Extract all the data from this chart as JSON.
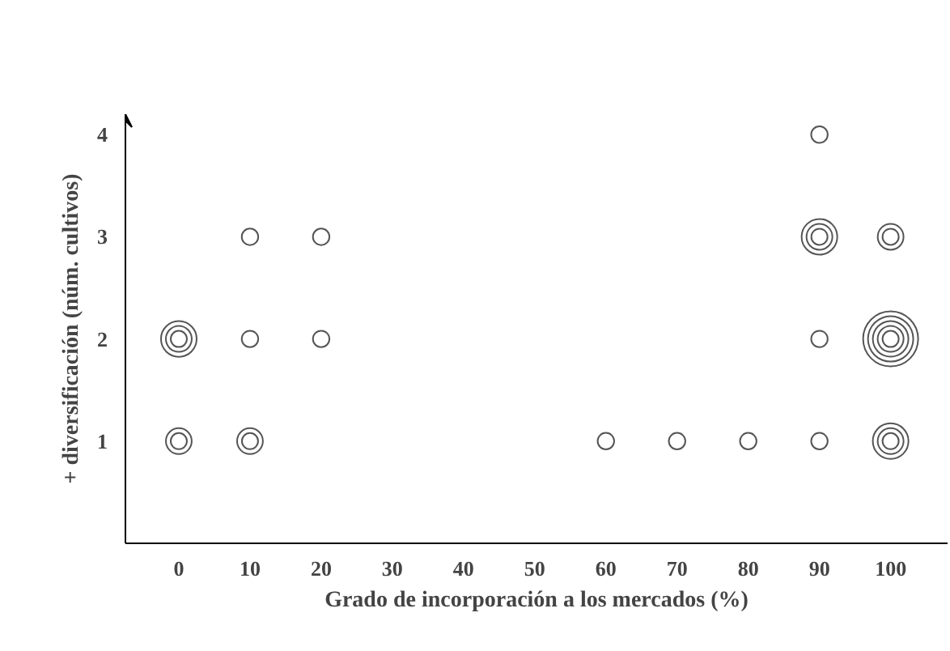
{
  "chart_data": {
    "type": "bubble",
    "xlabel": "Grado de incorporación a los mercados (%)",
    "ylabel": "+ diversificación (núm. cultivos)",
    "x": [
      0,
      10,
      0,
      10,
      20,
      10,
      20,
      60,
      70,
      80,
      90,
      100,
      90,
      100,
      90,
      100,
      90
    ],
    "values": [
      1,
      1,
      2,
      2,
      2,
      3,
      3,
      1,
      1,
      1,
      1,
      1,
      2,
      2,
      3,
      3,
      4
    ],
    "sizes": [
      0.22,
      0.22,
      0.42,
      0.09,
      0.09,
      0.09,
      0.09,
      0.09,
      0.09,
      0.09,
      0.09,
      0.42,
      0.09,
      1,
      0.42,
      0.22,
      0.09
    ],
    "color": "#555555",
    "xlim": [
      -7.5,
      108
    ],
    "xticks": [
      0,
      10,
      20,
      30,
      40,
      50,
      60,
      70,
      80,
      90,
      100
    ],
    "ylim": [
      0,
      4.2
    ],
    "yticks": [
      1,
      2,
      3,
      4
    ],
    "grid": false
  }
}
